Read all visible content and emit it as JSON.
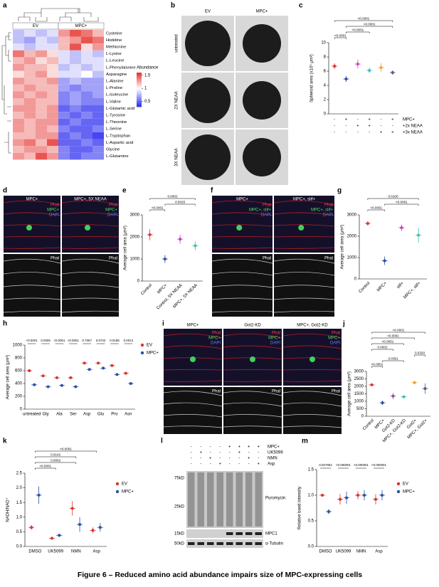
{
  "figure": {
    "title": "Figure 6 – Reduced amino acid abundance impairs size of MPC-expressing cells",
    "panels": [
      "a",
      "b",
      "c",
      "d",
      "e",
      "f",
      "g",
      "h",
      "i",
      "j",
      "k",
      "l",
      "m"
    ]
  },
  "images": {
    "b": {
      "columns": [
        "EV",
        "MPC+"
      ],
      "rows": [
        "untreated",
        "2X NEAA",
        "3X NEAA"
      ]
    },
    "d": {
      "columns": [
        "MPC+",
        "MPC+, 5X NEAA"
      ],
      "channels": [
        "Phal",
        "MPC+",
        "DAPI"
      ],
      "bottom": "Phal"
    },
    "f": {
      "columns": [
        "MPC+",
        "MPC+, slif+"
      ],
      "channels": [
        "Phal",
        "MPC+, slif+",
        "DAPI"
      ],
      "bottom": "Phal"
    },
    "i": {
      "columns": [
        "MPC+",
        "Got2-KD",
        "MPC+, Got2-KD"
      ],
      "channels": [
        "Phal",
        "MPC+",
        "DAPI"
      ],
      "bottom": "Phal"
    },
    "l": {
      "rows": [
        {
          "name": "MPC+",
          "signs": [
            "-",
            "-",
            "-",
            "-",
            "+",
            "+",
            "+",
            "+"
          ]
        },
        {
          "name": "UK5099",
          "signs": [
            "-",
            "+",
            "-",
            "-",
            "-",
            "+",
            "-",
            "-"
          ]
        },
        {
          "name": "NMN",
          "signs": [
            "-",
            "-",
            "+",
            "-",
            "-",
            "-",
            "+",
            "-"
          ]
        },
        {
          "name": "Asp",
          "signs": [
            "-",
            "-",
            "-",
            "+",
            "-",
            "-",
            "-",
            "+"
          ]
        }
      ],
      "markers": [
        "75kD",
        "25kD",
        "15kD",
        "50kD"
      ],
      "bands": [
        "Puromycin",
        "MPC1",
        "α-Tubulin"
      ]
    }
  },
  "chart_data": [
    {
      "type": "heatmap",
      "column_groups": [
        "EV",
        "MPC+"
      ],
      "rows": [
        "Cysteine",
        "Histidine",
        "Methionine",
        "L-Lysine",
        "L-Leucine",
        "L-Phenylalanine",
        "Asparagine",
        "L-Alanine",
        "L-Proline",
        "L-Isoleucine",
        "L-Valine",
        "L-Glutamic acid",
        "L-Tyrosine",
        "L-Theonine",
        "L-Serine",
        "L-Tryptophan",
        "L-Aspartic acid",
        "Glycine",
        "L-Glutamine"
      ],
      "values": [
        [
          0.8,
          0.9,
          0.8,
          0.9,
          1.3,
          1.5,
          1.4,
          1.2
        ],
        [
          0.8,
          0.7,
          0.9,
          0.8,
          1.2,
          1.3,
          1.5,
          1.4
        ],
        [
          0.9,
          0.8,
          0.9,
          0.9,
          1.2,
          1.5,
          1.1,
          1.3
        ],
        [
          1.4,
          1.2,
          1.3,
          1.1,
          0.9,
          0.8,
          0.9,
          0.8
        ],
        [
          1.2,
          1.3,
          1.1,
          1.2,
          0.9,
          0.8,
          0.9,
          0.9
        ],
        [
          1.3,
          1.2,
          1.2,
          1.1,
          0.8,
          0.9,
          0.8,
          0.9
        ],
        [
          1.1,
          1.2,
          1.3,
          1.1,
          0.9,
          0.9,
          1.0,
          0.8
        ],
        [
          1.3,
          1.2,
          1.2,
          1.3,
          0.7,
          0.8,
          0.7,
          0.7
        ],
        [
          1.2,
          1.3,
          1.2,
          1.2,
          0.7,
          0.6,
          0.7,
          0.7
        ],
        [
          1.3,
          1.2,
          1.3,
          1.2,
          0.6,
          0.7,
          0.6,
          0.7
        ],
        [
          1.2,
          1.3,
          1.2,
          1.2,
          0.6,
          0.7,
          0.6,
          0.6
        ],
        [
          1.3,
          1.3,
          1.2,
          1.3,
          0.5,
          0.6,
          0.5,
          0.5
        ],
        [
          1.2,
          1.3,
          1.2,
          1.3,
          0.6,
          0.5,
          0.6,
          0.5
        ],
        [
          1.3,
          1.2,
          1.3,
          1.3,
          0.5,
          0.6,
          0.5,
          0.5
        ],
        [
          1.3,
          1.2,
          1.3,
          1.2,
          0.6,
          0.5,
          0.5,
          0.6
        ],
        [
          1.2,
          1.2,
          1.3,
          1.3,
          0.5,
          0.6,
          0.5,
          0.4
        ],
        [
          1.3,
          1.4,
          1.2,
          1.5,
          0.5,
          0.5,
          0.6,
          0.5
        ],
        [
          1.2,
          1.3,
          1.3,
          1.2,
          0.6,
          0.5,
          0.5,
          0.6
        ],
        [
          1.3,
          1.2,
          1.5,
          1.3,
          0.6,
          0.5,
          0.6,
          0.6
        ]
      ],
      "colorbar_title": "Abundance",
      "clim": [
        0.3,
        1.6
      ],
      "cticks": [
        1.5,
        1,
        0.5
      ]
    },
    {
      "type": "dot",
      "ylabel": "Spheroid area (x10⁵ μm²)",
      "values": [
        6.7,
        4.9,
        7.0,
        6.1,
        6.5,
        5.8
      ],
      "errors": [
        0.4,
        0.4,
        0.6,
        0.4,
        0.6,
        0.3
      ],
      "colors": [
        "#d9342b",
        "#2b4fa8",
        "#d040c8",
        "#3fbfc0",
        "#f0a030",
        "#506080"
      ],
      "ylim": [
        0,
        10
      ],
      "yticks": [
        0,
        2,
        4,
        6,
        8,
        10
      ],
      "conditions": [
        {
          "name": "MPC+",
          "signs": [
            "-",
            "+",
            "-",
            "+",
            "-",
            "+"
          ]
        },
        {
          "name": "+2x NEAA",
          "signs": [
            "-",
            "-",
            "+",
            "+",
            "-",
            "-"
          ]
        },
        {
          "name": "+3x NEAA",
          "signs": [
            "-",
            "-",
            "-",
            "-",
            "+",
            "+"
          ]
        }
      ],
      "comparisons": [
        {
          "label": "<0.0001",
          "groups": [
            0,
            1
          ]
        },
        {
          "label": "<0.0001",
          "groups": [
            1,
            3
          ]
        },
        {
          "label": "<0.0001",
          "groups": [
            1,
            5
          ]
        },
        {
          "label": "<0.0001",
          "groups": [
            0,
            5
          ]
        }
      ]
    },
    {
      "type": "dot",
      "ylabel": "Average cell area (μm²)",
      "categories": [
        "Control",
        "MPC+",
        "Control, 5X NEAA",
        "MPC+, 5X NEAA"
      ],
      "values": [
        2100,
        1000,
        1900,
        1600
      ],
      "errors": [
        250,
        180,
        200,
        200
      ],
      "colors": [
        "#d9342b",
        "#2b4fa8",
        "#c040c0",
        "#3fbfb0"
      ],
      "ylim": [
        0,
        3000
      ],
      "yticks": [
        0,
        1000,
        2000,
        3000
      ],
      "comparisons": [
        {
          "label": "<0.0001",
          "groups": [
            0,
            1
          ]
        },
        {
          "label": "0.0025",
          "groups": [
            1,
            3
          ]
        },
        {
          "label": "0.0002",
          "groups": [
            0,
            3
          ]
        }
      ]
    },
    {
      "type": "dot",
      "ylabel": "Average cell area (μm²)",
      "categories": [
        "Control",
        "MPC+",
        "slif+",
        "MPC+, slif+"
      ],
      "values": [
        2600,
        850,
        2400,
        2050
      ],
      "errors": [
        100,
        200,
        150,
        350
      ],
      "colors": [
        "#d9342b",
        "#2b4fa8",
        "#c040c0",
        "#3fbfb0"
      ],
      "ylim": [
        0,
        3000
      ],
      "yticks": [
        0,
        1000,
        2000,
        3000
      ],
      "comparisons": [
        {
          "label": "<0.0001",
          "groups": [
            0,
            1
          ]
        },
        {
          "label": "<0.0001",
          "groups": [
            1,
            3
          ]
        },
        {
          "label": "0.0100",
          "groups": [
            0,
            3
          ]
        }
      ]
    },
    {
      "type": "dot",
      "ylabel": "Average cell area (μm²)",
      "categories": [
        "untreated",
        "Gly",
        "Ala",
        "Ser",
        "Asp",
        "Glu",
        "Pro",
        "Asn"
      ],
      "series": [
        {
          "name": "EV",
          "color": "#d9342b",
          "values": [
            600,
            520,
            490,
            490,
            720,
            720,
            680,
            560
          ]
        },
        {
          "name": "MPC+",
          "color": "#2b4fa8",
          "values": [
            380,
            350,
            370,
            350,
            620,
            640,
            540,
            400
          ]
        }
      ],
      "ylim": [
        0,
        1000
      ],
      "yticks": [
        0,
        200,
        400,
        600,
        800,
        1000
      ],
      "pvalues": [
        "<0.0001",
        "0.0005",
        "<0.0001",
        "<0.0001",
        "0.7057",
        "0.0742",
        "0.0189",
        "0.0013"
      ]
    },
    {
      "type": "dot",
      "ylabel": "Average cell area (μm²)",
      "categories": [
        "Control",
        "MPC+",
        "Got2-KD",
        "MPC+, Got2-KD",
        "Got2+",
        "MPC+, Got2+"
      ],
      "values": [
        2100,
        900,
        1350,
        1300,
        2250,
        1850
      ],
      "errors": [
        80,
        150,
        200,
        100,
        100,
        350
      ],
      "colors": [
        "#d9342b",
        "#2b4fa8",
        "#9050a0",
        "#3fbfb0",
        "#f0a030",
        "#506080"
      ],
      "ylim": [
        0,
        3000
      ],
      "yticks": [
        0,
        500,
        1000,
        1500,
        2000,
        2500,
        3000
      ],
      "comparisons": [
        {
          "label": "<0.0001",
          "groups": [
            0,
            1
          ]
        },
        {
          "label": "0.0391",
          "groups": [
            1,
            3
          ]
        },
        {
          "label": "0.0320",
          "groups": [
            4,
            5
          ]
        },
        {
          "label": "0.0002",
          "groups": [
            0,
            2
          ]
        },
        {
          "label": "<0.0001",
          "groups": [
            0,
            3
          ]
        },
        {
          "label": "<0.0001",
          "groups": [
            0,
            4
          ]
        },
        {
          "label": "<0.0001",
          "groups": [
            0,
            5
          ]
        }
      ]
    },
    {
      "type": "dot",
      "ylabel": "NADH/NAD⁺",
      "categories": [
        "DMSO",
        "UK5099",
        "NMN",
        "Asp"
      ],
      "series": [
        {
          "name": "EV",
          "color": "#d9342b",
          "values": [
            0.65,
            0.28,
            1.3,
            0.55
          ],
          "errors": [
            0.08,
            0.03,
            0.25,
            0.1
          ]
        },
        {
          "name": "MPC+",
          "color": "#2b4fa8",
          "values": [
            1.75,
            0.38,
            0.75,
            0.65
          ],
          "errors": [
            0.3,
            0.05,
            0.25,
            0.15
          ]
        }
      ],
      "ylim": [
        0,
        2.5
      ],
      "yticks": [
        {
          "value": 0,
          "label": "0.0"
        },
        {
          "value": 0.5,
          "label": "0.5"
        },
        {
          "value": 1,
          "label": "1.0"
        },
        {
          "value": 1.5,
          "label": "1.5"
        },
        {
          "value": 2,
          "label": "2.0"
        },
        {
          "value": 2.5,
          "label": "2.5"
        }
      ],
      "comparisons": [
        {
          "label": "<0.0001",
          "groups": [
            0,
            1
          ]
        },
        {
          "label": "0.0002",
          "groups": [
            0,
            2
          ]
        },
        {
          "label": "0.0142",
          "groups": [
            0,
            2
          ]
        },
        {
          "label": "<0.0001",
          "groups": [
            0,
            3
          ]
        }
      ]
    },
    {
      "type": "dot",
      "ylabel": "Relative band intensity",
      "categories": [
        "DMSO",
        "UK5099",
        "NMN",
        "Asp"
      ],
      "series": [
        {
          "name": "EV",
          "color": "#d9342b",
          "values": [
            1.0,
            0.92,
            1.0,
            0.92
          ],
          "errors": [
            0.02,
            0.1,
            0.08,
            0.1
          ]
        },
        {
          "name": "MPC+",
          "color": "#2b4fa8",
          "values": [
            0.68,
            0.95,
            1.0,
            1.0
          ],
          "errors": [
            0.05,
            0.12,
            0.1,
            0.1
          ]
        }
      ],
      "ylim": [
        0,
        1.5
      ],
      "yticks": [
        {
          "value": 0,
          "label": "0.0"
        },
        {
          "value": 0.5,
          "label": "0.5"
        },
        {
          "value": 1,
          "label": "1.0"
        },
        {
          "value": 1.5,
          "label": "1.5"
        }
      ],
      "pvalues": [
        "0.027902",
        "<0.000001",
        "<0.000001",
        "<0.000001"
      ]
    }
  ]
}
